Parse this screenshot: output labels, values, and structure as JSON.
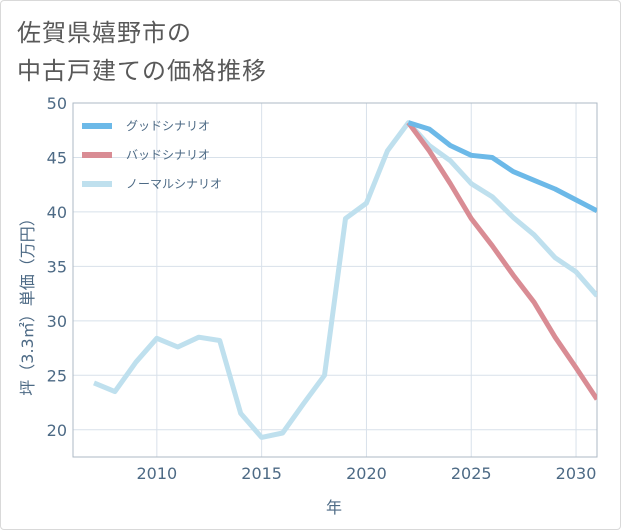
{
  "title_lines": [
    "佐賀県嬉野市の",
    "中古戸建ての価格推移"
  ],
  "chart_data": {
    "type": "line",
    "title": "佐賀県嬉野市の中古戸建ての価格推移",
    "xlabel": "年",
    "ylabel": "坪（3.3㎡）単価（万円）",
    "xlim": [
      2006,
      2031
    ],
    "ylim": [
      17.5,
      50
    ],
    "x_ticks": [
      2010,
      2015,
      2020,
      2025,
      2030
    ],
    "y_ticks": [
      20,
      25,
      30,
      35,
      40,
      45,
      50
    ],
    "grid": true,
    "legend_position": "top-left",
    "series": [
      {
        "name": "グッドシナリオ",
        "color": "#6cb9e8",
        "x": [
          2022,
          2023,
          2024,
          2025,
          2026,
          2027,
          2028,
          2029,
          2030,
          2031
        ],
        "y": [
          48.2,
          47.6,
          46.1,
          45.2,
          45.0,
          43.7,
          42.9,
          42.1,
          41.1,
          40.1
        ]
      },
      {
        "name": "バッドシナリオ",
        "color": "#d98c94",
        "x": [
          2022,
          2023,
          2024,
          2025,
          2026,
          2027,
          2028,
          2029,
          2030,
          2031
        ],
        "y": [
          48.2,
          45.6,
          42.6,
          39.4,
          36.9,
          34.2,
          31.7,
          28.5,
          25.7,
          22.8
        ]
      },
      {
        "name": "ノーマルシナリオ",
        "color": "#bfe0ee",
        "x": [
          2007,
          2008,
          2009,
          2010,
          2011,
          2012,
          2013,
          2014,
          2015,
          2016,
          2017,
          2018,
          2019,
          2020,
          2021,
          2022,
          2023,
          2024,
          2025,
          2026,
          2027,
          2028,
          2029,
          2030,
          2031
        ],
        "y": [
          24.3,
          23.5,
          26.2,
          28.4,
          27.6,
          28.5,
          28.2,
          21.5,
          19.3,
          19.7,
          22.4,
          25.0,
          39.4,
          40.8,
          45.6,
          48.2,
          46.1,
          44.7,
          42.6,
          41.4,
          39.5,
          37.9,
          35.8,
          34.5,
          32.3
        ]
      }
    ]
  }
}
